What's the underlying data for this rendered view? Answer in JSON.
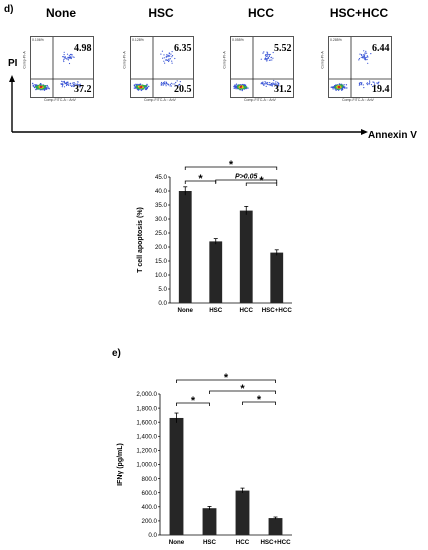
{
  "panel_d": {
    "letter": "d)",
    "y_axis_title": "PI",
    "x_axis_title": "Annexin V",
    "plots": [
      {
        "title": "None",
        "ul": "0.106%",
        "ur": "4.98",
        "lr": "37.2"
      },
      {
        "title": "HSC",
        "ul": "0.128%",
        "ur": "6.35",
        "lr": "20.5"
      },
      {
        "title": "HCC",
        "ul": "0.055%",
        "ur": "5.52",
        "lr": "31.2"
      },
      {
        "title": "HSC+HCC",
        "ul": "0.285%",
        "ur": "6.44",
        "lr": "19.4"
      }
    ],
    "flow_y_label": "Comp-PI-A",
    "flow_x_label": "Comp-FITC-A :: AnV"
  },
  "panel_e": {
    "letter": "e)"
  },
  "chart_data": [
    {
      "type": "bar",
      "categories": [
        "None",
        "HSC",
        "HCC",
        "HSC+HCC"
      ],
      "values": [
        40,
        22,
        33,
        18
      ],
      "errors": [
        1.5,
        1.0,
        1.5,
        1.0
      ],
      "ylabel": "T cell apoptosis (%)",
      "ylim": [
        0,
        45
      ],
      "yticks": [
        "0.0",
        "5.0",
        "10.0",
        "15.0",
        "20.0",
        "25.0",
        "30.0",
        "35.0",
        "40.0",
        "45.0"
      ],
      "significance": [
        {
          "from": 0,
          "to": 3,
          "label": "*"
        },
        {
          "from": 1,
          "to": 3,
          "label": "P>0.05"
        },
        {
          "from": 0,
          "to": 1,
          "label": "*"
        },
        {
          "from": 2,
          "to": 3,
          "label": "*"
        }
      ]
    },
    {
      "type": "bar",
      "categories": [
        "None",
        "HSC",
        "HCC",
        "HSC+HCC"
      ],
      "values": [
        1660,
        380,
        630,
        240
      ],
      "errors": [
        70,
        25,
        35,
        15
      ],
      "ylabel": "IFNγ (pg/mL)",
      "ylim": [
        0,
        2000
      ],
      "yticks": [
        "0.0",
        "200.0",
        "400.0",
        "600.0",
        "800.0",
        "1,000.0",
        "1,200.0",
        "1,400.0",
        "1,600.0",
        "1,800.0",
        "2,000.0"
      ],
      "significance": [
        {
          "from": 0,
          "to": 3,
          "label": "*"
        },
        {
          "from": 1,
          "to": 3,
          "label": "*"
        },
        {
          "from": 0,
          "to": 1,
          "label": "*"
        },
        {
          "from": 2,
          "to": 3,
          "label": "*"
        }
      ]
    }
  ],
  "colors": {
    "bar": "#262626",
    "scatter_blue": "#3a55d6",
    "scatter_green": "#2fa84f",
    "scatter_yellow": "#e8d21a",
    "scatter_red": "#d02020"
  }
}
